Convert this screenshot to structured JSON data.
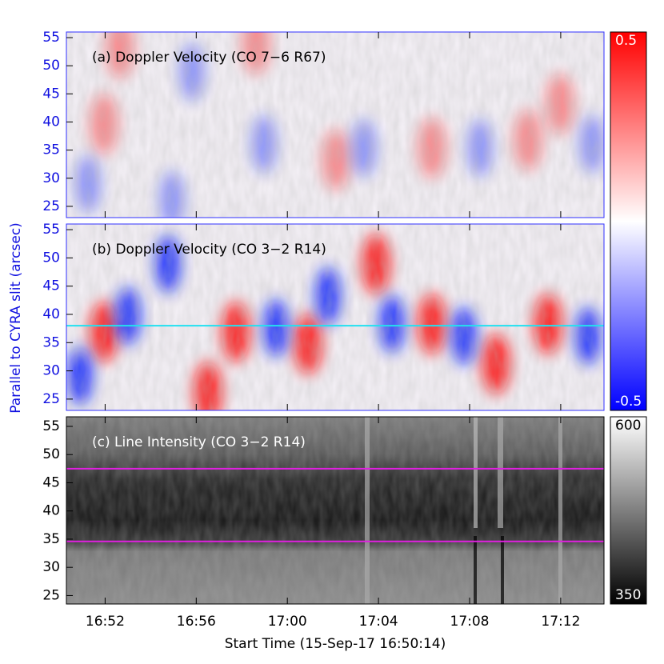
{
  "chart_data": [
    {
      "type": "heatmap",
      "title": "(a) Doppler Velocity (CO 7−6 R67)",
      "ylim": [
        23,
        56
      ],
      "yticks": [
        25,
        30,
        35,
        40,
        45,
        50,
        55
      ],
      "tick_color": "#1010e0",
      "colorbar": {
        "lim": [
          -0.5,
          0.5
        ],
        "ticks": [
          -0.5,
          0.5
        ],
        "colors": [
          "#0000ff",
          "#ffffff",
          "#ff0000"
        ]
      }
    },
    {
      "type": "heatmap",
      "title": "(b) Doppler Velocity (CO 3−2 R14)",
      "ylim": [
        23,
        56
      ],
      "yticks": [
        25,
        30,
        35,
        40,
        45,
        50,
        55
      ],
      "tick_color": "#1010e0",
      "ylabel": "Parallel to CYRA slit (arcsec)",
      "hlines": [
        {
          "value": 38,
          "color": "#22e0f0"
        }
      ]
    },
    {
      "type": "heatmap",
      "title": "(c) Line Intensity (CO 3−2 R14)",
      "ylim": [
        23.5,
        56.7
      ],
      "yticks": [
        25,
        30,
        35,
        40,
        45,
        50,
        55
      ],
      "tick_color": "#000000",
      "hlines": [
        {
          "value": 47.5,
          "color": "#e020e0"
        },
        {
          "value": 34.6,
          "color": "#e020e0"
        }
      ],
      "colorbar": {
        "lim": [
          350,
          600
        ],
        "ticks": [
          350,
          600
        ],
        "colors": [
          "#000000",
          "#ffffff"
        ]
      },
      "xlabel": "Start Time (15-Sep-17 16:50:14)",
      "xlim": [
        1010.3,
        1033.9
      ],
      "xticks": [
        {
          "value": 1012,
          "label": "16:52"
        },
        {
          "value": 1016,
          "label": "16:56"
        },
        {
          "value": 1020,
          "label": "17:00"
        },
        {
          "value": 1024,
          "label": "17:04"
        },
        {
          "value": 1028,
          "label": "17:08"
        },
        {
          "value": 1032,
          "label": "17:12"
        }
      ]
    }
  ]
}
